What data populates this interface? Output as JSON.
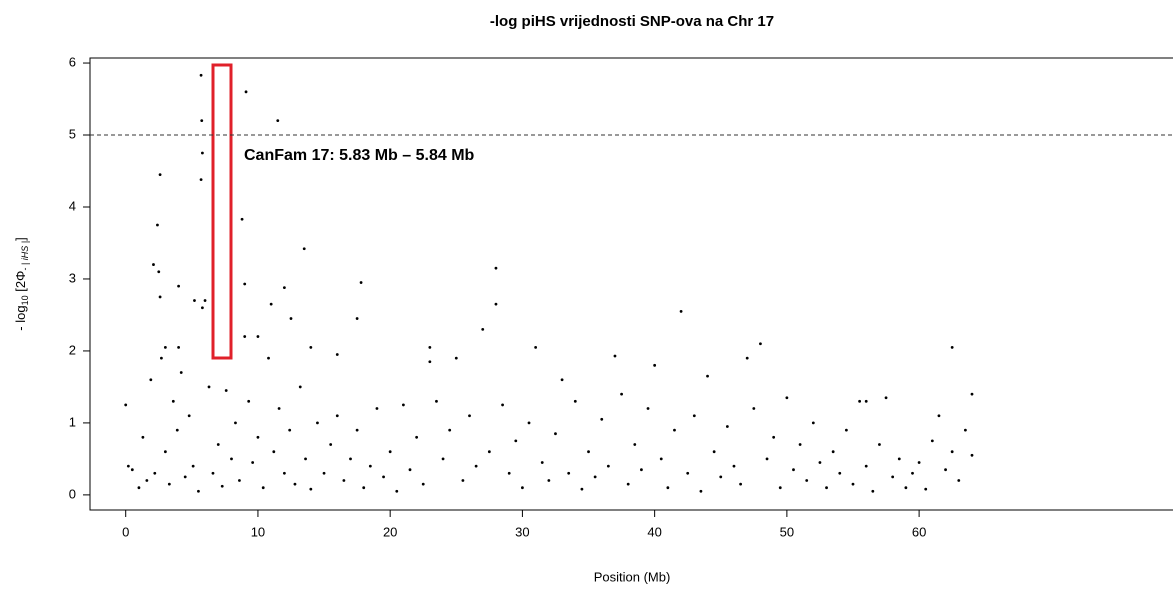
{
  "chart_data": {
    "type": "scatter",
    "title": "-log piHS vrijednosti SNP-ova na Chr 17",
    "xlabel": "Position (Mb)",
    "ylabel_parts": [
      "- log",
      "10",
      " [2Φ",
      "- | iHS |",
      "]"
    ],
    "annotation": "CanFam 17: 5.83 Mb – 5.84 Mb",
    "hline": 5,
    "color": "#000000",
    "xlim": [
      -2.7,
      79.2
    ],
    "ylim": [
      -0.21,
      6.07
    ],
    "xticks": [
      0,
      10,
      20,
      30,
      40,
      50,
      60
    ],
    "yticks": [
      0,
      1,
      2,
      3,
      4,
      5,
      6
    ],
    "x": [
      5.7,
      5.75,
      5.8,
      5.7,
      9.1,
      11.5,
      2.6,
      2.4,
      8.8,
      13.5,
      2.1,
      2.5,
      28,
      9.0,
      12,
      17.8,
      11,
      2.6,
      6,
      5.2,
      5.8,
      4,
      28,
      42,
      17.5,
      12.5,
      27,
      9,
      10,
      3,
      4,
      23,
      31,
      14,
      62.5,
      48,
      37,
      47,
      16,
      23,
      25,
      33,
      40,
      44,
      56,
      64,
      0,
      0.2,
      0.5,
      1,
      1.3,
      1.6,
      1.9,
      2.2,
      2.7,
      3.0,
      3.3,
      3.6,
      3.9,
      4.2,
      4.5,
      4.8,
      5.1,
      5.5,
      6.3,
      6.6,
      7,
      7.3,
      7.6,
      8,
      8.3,
      8.6,
      9.3,
      9.6,
      10,
      10.4,
      10.8,
      11.2,
      11.6,
      12,
      12.4,
      12.8,
      13.2,
      13.6,
      14,
      14.5,
      15,
      15.5,
      16,
      16.5,
      17,
      17.5,
      18,
      18.5,
      19,
      19.5,
      20,
      20.5,
      21,
      21.5,
      22,
      22.5,
      23.5,
      24,
      24.5,
      25.5,
      26,
      26.5,
      27.5,
      28.5,
      29,
      29.5,
      30,
      30.5,
      31.5,
      32,
      32.5,
      33.5,
      34,
      34.5,
      35,
      35.5,
      36,
      36.5,
      37.5,
      38,
      38.5,
      39,
      39.5,
      40.5,
      41,
      41.5,
      42.5,
      43,
      43.5,
      44.5,
      45,
      45.5,
      46,
      46.5,
      47.5,
      48.5,
      49,
      49.5,
      50,
      50.5,
      51,
      51.5,
      52,
      52.5,
      53,
      53.5,
      54,
      54.5,
      55,
      55.5,
      56,
      56.5,
      57,
      57.5,
      58,
      58.5,
      59,
      59.5,
      60,
      60.5,
      61,
      61.5,
      62,
      62.5,
      63,
      63.5,
      64
    ],
    "values": [
      5.83,
      5.2,
      4.75,
      4.38,
      5.6,
      5.2,
      4.45,
      3.75,
      3.83,
      3.42,
      3.2,
      3.1,
      3.15,
      2.93,
      2.88,
      2.95,
      2.65,
      2.75,
      2.7,
      2.7,
      2.6,
      2.9,
      2.65,
      2.55,
      2.45,
      2.45,
      2.3,
      2.2,
      2.2,
      2.05,
      2.05,
      2.05,
      2.05,
      2.05,
      2.05,
      2.1,
      1.93,
      1.9,
      1.95,
      1.85,
      1.9,
      1.6,
      1.8,
      1.65,
      1.3,
      1.4,
      1.25,
      0.4,
      0.35,
      0.1,
      0.8,
      0.2,
      1.6,
      0.3,
      1.9,
      0.6,
      0.15,
      1.3,
      0.9,
      1.7,
      0.25,
      1.1,
      0.4,
      0.05,
      1.5,
      0.3,
      0.7,
      0.12,
      1.45,
      0.5,
      1.0,
      0.2,
      1.3,
      0.45,
      0.8,
      0.1,
      1.9,
      0.6,
      1.2,
      0.3,
      0.9,
      0.15,
      1.5,
      0.5,
      0.08,
      1.0,
      0.3,
      0.7,
      1.1,
      0.2,
      0.5,
      0.9,
      0.1,
      0.4,
      1.2,
      0.25,
      0.6,
      0.05,
      1.25,
      0.35,
      0.8,
      0.15,
      1.3,
      0.5,
      0.9,
      0.2,
      1.1,
      0.4,
      0.6,
      1.25,
      0.3,
      0.75,
      0.1,
      1.0,
      0.45,
      0.2,
      0.85,
      0.3,
      1.3,
      0.08,
      0.6,
      0.25,
      1.05,
      0.4,
      1.4,
      0.15,
      0.7,
      0.35,
      1.2,
      0.5,
      0.1,
      0.9,
      0.3,
      1.1,
      0.05,
      0.6,
      0.25,
      0.95,
      0.4,
      0.15,
      1.2,
      0.5,
      0.8,
      0.1,
      1.35,
      0.35,
      0.7,
      0.2,
      1.0,
      0.45,
      0.1,
      0.6,
      0.3,
      0.9,
      0.15,
      1.3,
      0.4,
      0.05,
      0.7,
      1.35,
      0.25,
      0.5,
      0.1,
      0.3,
      0.45,
      0.08,
      0.75,
      1.1,
      0.35,
      0.6,
      0.2,
      0.9,
      0.55
    ]
  }
}
